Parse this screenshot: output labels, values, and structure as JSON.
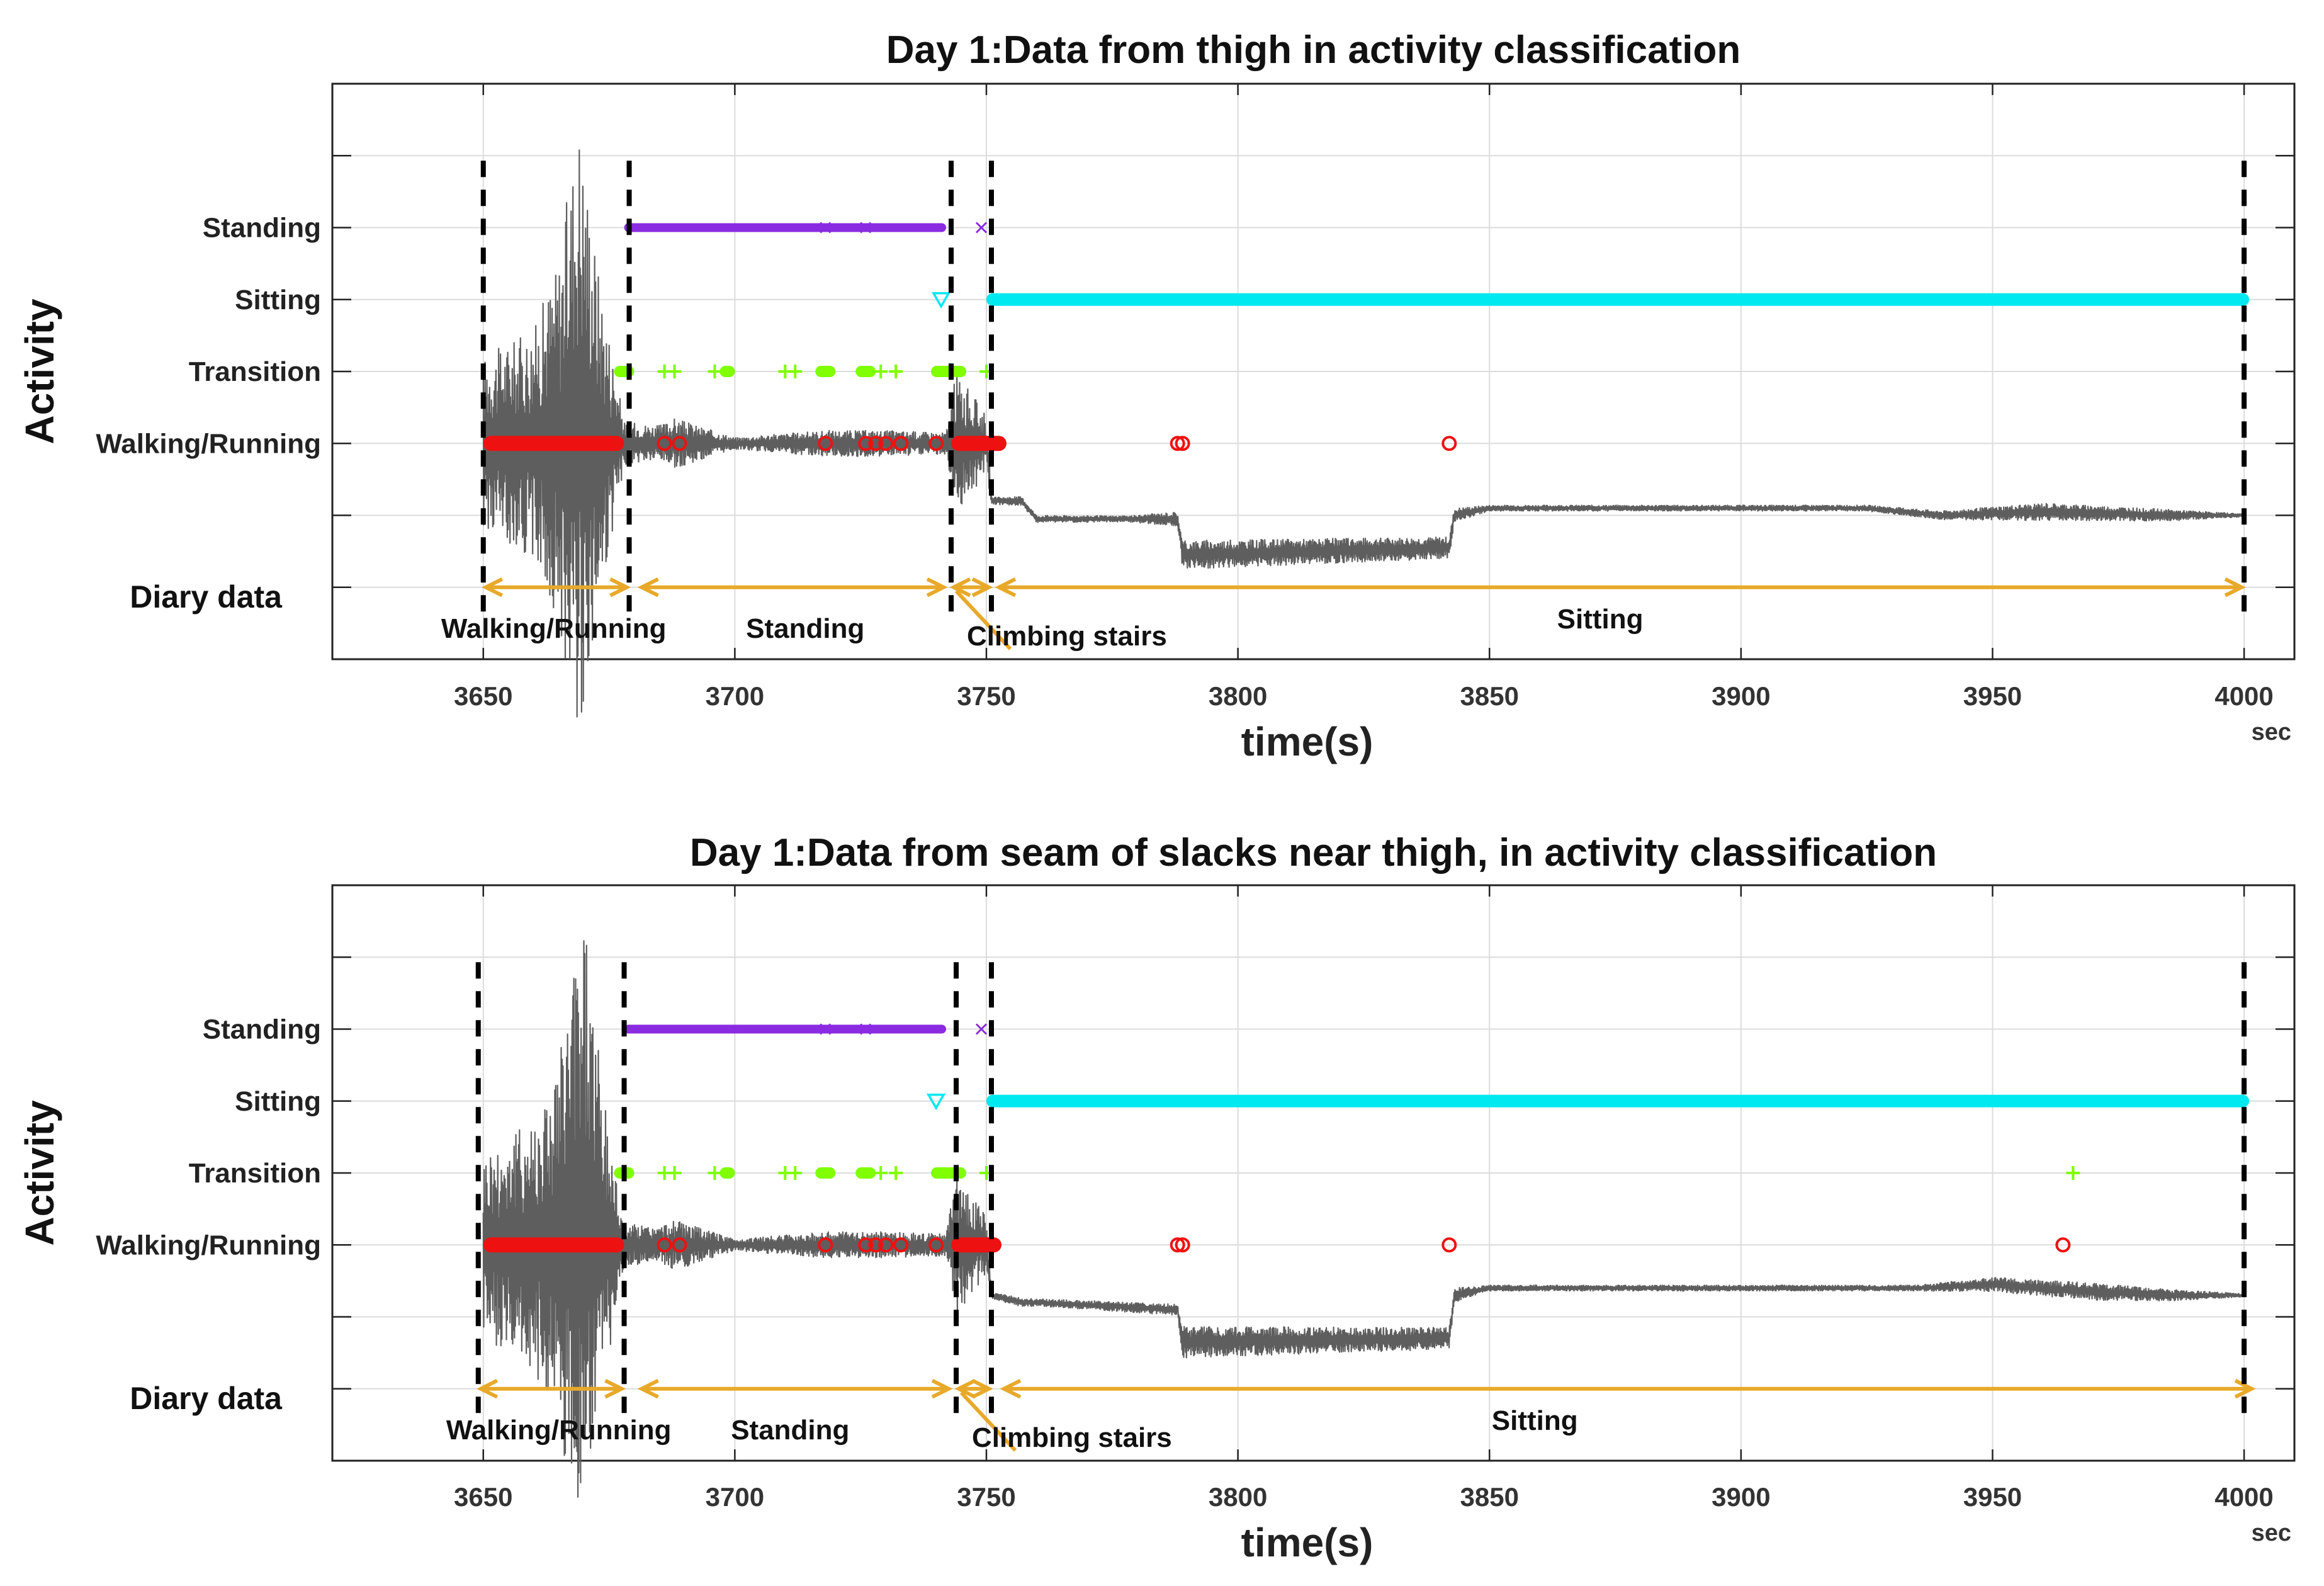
{
  "colors": {
    "signal": "#5e5e5e",
    "walking": "#ee1111",
    "transition": "#7fff00",
    "sitting": "#00e8f0",
    "standing": "#8a2be2",
    "diary_arrow": "#e8a92a",
    "divider": "#000000",
    "grid": "#dcdcdc"
  },
  "chart_data": [
    {
      "type": "scatter",
      "title": "Day 1:Data from thigh in activity classification",
      "xlabel": "time(s)",
      "xunit": "sec",
      "ylabel": "Activity",
      "xlim": [
        3620,
        4010
      ],
      "ylim": [
        0,
        8
      ],
      "grid": true,
      "xticks": [
        3650,
        3700,
        3750,
        3800,
        3850,
        3900,
        3950,
        4000
      ],
      "activity_labels": [
        "Walking/Running",
        "Transition",
        "Sitting",
        "Standing"
      ],
      "activity_levels": [
        3,
        4,
        5,
        6
      ],
      "diary_label": "Diary data",
      "diary_level": 1,
      "classification": {
        "Walking/Running": {
          "marker": "o",
          "runs": [
            [
              3650,
              3678
            ],
            [
              3743,
              3754
            ]
          ],
          "points": [
            3686,
            3689,
            3718,
            3726,
            3728,
            3730,
            3733,
            3740,
            3788,
            3789,
            3842
          ]
        },
        "Transition": {
          "marker": "+",
          "runs": [
            [
              3676,
              3680
            ],
            [
              3697,
              3700
            ],
            [
              3716,
              3720
            ],
            [
              3724,
              3728
            ],
            [
              3739,
              3746
            ]
          ],
          "points": [
            3686,
            3688,
            3696,
            3710,
            3712,
            3729,
            3732,
            3750
          ]
        },
        "Sitting": {
          "marker": "v",
          "runs": [
            [
              3750,
              4001
            ]
          ],
          "points": [
            3741
          ]
        },
        "Standing": {
          "marker": "x",
          "runs": [
            [
              3678,
              3742
            ]
          ],
          "points": [
            3718,
            3726,
            3749
          ]
        }
      },
      "signal": [
        {
          "x": 3650,
          "y": 3,
          "amp": 1.2
        },
        {
          "x": 3660,
          "y": 3,
          "amp": 1.6
        },
        {
          "x": 3665,
          "y": 3,
          "amp": 2.6
        },
        {
          "x": 3669,
          "y": 3.3,
          "amp": 4.3
        },
        {
          "x": 3673,
          "y": 3,
          "amp": 2.4
        },
        {
          "x": 3678,
          "y": 3,
          "amp": 0.3
        },
        {
          "x": 3685,
          "y": 3,
          "amp": 0.25
        },
        {
          "x": 3688,
          "y": 3,
          "amp": 0.35
        },
        {
          "x": 3700,
          "y": 3,
          "amp": 0.08
        },
        {
          "x": 3718,
          "y": 3,
          "amp": 0.18
        },
        {
          "x": 3730,
          "y": 3,
          "amp": 0.18
        },
        {
          "x": 3742,
          "y": 3,
          "amp": 0.15
        },
        {
          "x": 3744,
          "y": 3,
          "amp": 1.0
        },
        {
          "x": 3750,
          "y": 3.0,
          "amp": 0.4
        },
        {
          "x": 3751,
          "y": 2.2,
          "amp": 0.05
        },
        {
          "x": 3757,
          "y": 2.2,
          "amp": 0.06
        },
        {
          "x": 3760,
          "y": 1.95,
          "amp": 0.05
        },
        {
          "x": 3778,
          "y": 1.95,
          "amp": 0.04
        },
        {
          "x": 3788,
          "y": 1.95,
          "amp": 0.1
        },
        {
          "x": 3789,
          "y": 1.45,
          "amp": 0.2
        },
        {
          "x": 3842,
          "y": 1.55,
          "amp": 0.15
        },
        {
          "x": 3843,
          "y": 2.0,
          "amp": 0.1
        },
        {
          "x": 3850,
          "y": 2.1,
          "amp": 0.04
        },
        {
          "x": 3925,
          "y": 2.1,
          "amp": 0.04
        },
        {
          "x": 3940,
          "y": 2.0,
          "amp": 0.06
        },
        {
          "x": 3960,
          "y": 2.05,
          "amp": 0.12
        },
        {
          "x": 3985,
          "y": 2.0,
          "amp": 0.08
        },
        {
          "x": 4000,
          "y": 2.0,
          "amp": 0.02
        }
      ],
      "dividers": [
        3650,
        3679,
        3743,
        3751,
        4000
      ],
      "diary_segments": [
        {
          "label": "Walking/Running",
          "start": 3650,
          "end": 3679,
          "label_x": 3664
        },
        {
          "label": "Standing",
          "start": 3681,
          "end": 3742,
          "label_x": 3714
        },
        {
          "label": "Climbing stairs",
          "start": 3743,
          "end": 3751,
          "label_x": 3766
        },
        {
          "label": "Sitting",
          "start": 3752,
          "end": 4000,
          "label_x": 3872
        }
      ]
    },
    {
      "type": "scatter",
      "title": "Day 1:Data from seam of slacks near thigh, in activity classification",
      "xlabel": "time(s)",
      "xunit": "sec",
      "ylabel": "Activity",
      "xlim": [
        3620,
        4010
      ],
      "ylim": [
        0,
        8
      ],
      "grid": true,
      "xticks": [
        3650,
        3700,
        3750,
        3800,
        3850,
        3900,
        3950,
        4000
      ],
      "activity_labels": [
        "Walking/Running",
        "Transition",
        "Sitting",
        "Standing"
      ],
      "activity_levels": [
        3,
        4,
        5,
        6
      ],
      "diary_label": "Diary data",
      "diary_level": 1,
      "classification": {
        "Walking/Running": {
          "marker": "o",
          "runs": [
            [
              3650,
              3678
            ],
            [
              3743,
              3753
            ]
          ],
          "points": [
            3686,
            3689,
            3718,
            3726,
            3728,
            3730,
            3733,
            3740,
            3788,
            3789,
            3842,
            3964
          ]
        },
        "Transition": {
          "marker": "+",
          "runs": [
            [
              3676,
              3680
            ],
            [
              3697,
              3700
            ],
            [
              3716,
              3720
            ],
            [
              3724,
              3728
            ],
            [
              3739,
              3746
            ]
          ],
          "points": [
            3686,
            3688,
            3696,
            3710,
            3712,
            3729,
            3732,
            3750,
            3966
          ]
        },
        "Sitting": {
          "marker": "v",
          "runs": [
            [
              3750,
              4001
            ]
          ],
          "points": [
            3740
          ]
        },
        "Standing": {
          "marker": "x",
          "runs": [
            [
              3678,
              3742
            ]
          ],
          "points": [
            3718,
            3726,
            3749
          ]
        }
      },
      "signal": [
        {
          "x": 3650,
          "y": 3,
          "amp": 1.3
        },
        {
          "x": 3660,
          "y": 3,
          "amp": 1.8
        },
        {
          "x": 3665,
          "y": 3,
          "amp": 2.6
        },
        {
          "x": 3670,
          "y": 3.3,
          "amp": 4.5
        },
        {
          "x": 3674,
          "y": 3,
          "amp": 2.0
        },
        {
          "x": 3678,
          "y": 3,
          "amp": 0.3
        },
        {
          "x": 3685,
          "y": 3,
          "amp": 0.25
        },
        {
          "x": 3688,
          "y": 3,
          "amp": 0.35
        },
        {
          "x": 3700,
          "y": 3,
          "amp": 0.08
        },
        {
          "x": 3718,
          "y": 3,
          "amp": 0.18
        },
        {
          "x": 3730,
          "y": 3,
          "amp": 0.18
        },
        {
          "x": 3742,
          "y": 3,
          "amp": 0.15
        },
        {
          "x": 3744,
          "y": 3,
          "amp": 1.0
        },
        {
          "x": 3750,
          "y": 3.0,
          "amp": 0.4
        },
        {
          "x": 3751,
          "y": 2.3,
          "amp": 0.05
        },
        {
          "x": 3757,
          "y": 2.2,
          "amp": 0.06
        },
        {
          "x": 3760,
          "y": 2.2,
          "amp": 0.05
        },
        {
          "x": 3788,
          "y": 2.1,
          "amp": 0.08
        },
        {
          "x": 3789,
          "y": 1.65,
          "amp": 0.22
        },
        {
          "x": 3842,
          "y": 1.7,
          "amp": 0.15
        },
        {
          "x": 3843,
          "y": 2.3,
          "amp": 0.1
        },
        {
          "x": 3850,
          "y": 2.4,
          "amp": 0.04
        },
        {
          "x": 3935,
          "y": 2.4,
          "amp": 0.04
        },
        {
          "x": 3950,
          "y": 2.45,
          "amp": 0.1
        },
        {
          "x": 3970,
          "y": 2.35,
          "amp": 0.12
        },
        {
          "x": 3985,
          "y": 2.3,
          "amp": 0.08
        },
        {
          "x": 4000,
          "y": 2.3,
          "amp": 0.02
        }
      ],
      "dividers": [
        3649,
        3678,
        3744,
        3751,
        4000
      ],
      "diary_segments": [
        {
          "label": "Walking/Running",
          "start": 3649,
          "end": 3678,
          "label_x": 3665
        },
        {
          "label": "Standing",
          "start": 3681,
          "end": 3743,
          "label_x": 3711
        },
        {
          "label": "Climbing stairs",
          "start": 3744,
          "end": 3751,
          "label_x": 3767
        },
        {
          "label": "Sitting",
          "start": 3753,
          "end": 4002,
          "label_x": 3859
        }
      ]
    }
  ]
}
